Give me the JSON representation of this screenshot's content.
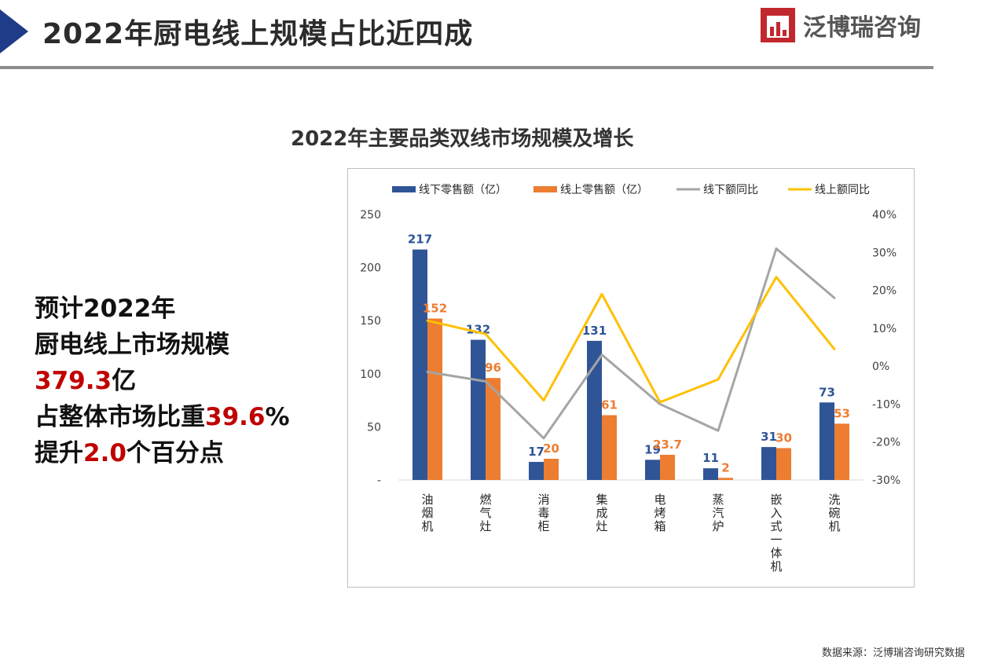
{
  "header": {
    "title": "2022年厨电线上规模占比近四成"
  },
  "logo": {
    "name": "泛博瑞咨询",
    "icon": "brand-logo-icon"
  },
  "summary": {
    "line1": "预计2022年",
    "line2": "厨电线上市场规模",
    "line3_value": "379.3",
    "line3_unit": "亿",
    "line4_prefix": "占整体市场比重",
    "line4_value": "39.6",
    "line4_suffix": "%",
    "line5_prefix": "提升",
    "line5_value": "2.0",
    "line5_suffix": "个百分点"
  },
  "chart_data": {
    "type": "bar",
    "title": "2022年主要品类双线市场规模及增长",
    "categories": [
      "油烟机",
      "燃气灶",
      "消毒柜",
      "集成灶",
      "电烤箱",
      "蒸汽炉",
      "嵌入式一体机",
      "洗碗机"
    ],
    "series": [
      {
        "name": "线下零售额（亿）",
        "kind": "bar",
        "axis": "left",
        "color": "#2f5597",
        "values": [
          217,
          132,
          17,
          131,
          19,
          11,
          31,
          73
        ],
        "labels": [
          "217",
          "132",
          "17",
          "131",
          "19",
          "11",
          "31",
          "73"
        ]
      },
      {
        "name": "线上零售额（亿）",
        "kind": "bar",
        "axis": "left",
        "color": "#ed7d31",
        "values": [
          152,
          96,
          20,
          61,
          23.7,
          2,
          30,
          53
        ],
        "labels": [
          "152",
          "96",
          "20",
          "61",
          "23.7",
          "2",
          "30",
          "53"
        ]
      },
      {
        "name": "线下额同比",
        "kind": "line",
        "axis": "right",
        "color": "#a5a5a5",
        "values": [
          -1.5,
          -4,
          -19,
          3,
          -10,
          -17,
          31,
          18
        ]
      },
      {
        "name": "线上额同比",
        "kind": "line",
        "axis": "right",
        "color": "#ffc000",
        "values": [
          12,
          8.5,
          -9,
          19,
          -9.5,
          -3.5,
          23.5,
          4.5
        ]
      }
    ],
    "y_left": {
      "ylim": [
        0,
        250
      ],
      "ticks": [
        "-",
        "50",
        "100",
        "150",
        "200",
        "250"
      ]
    },
    "y_right": {
      "ylim": [
        -30,
        40
      ],
      "unit": "%",
      "ticks": [
        "-30%",
        "-20%",
        "-10%",
        "0%",
        "10%",
        "20%",
        "30%",
        "40%"
      ]
    },
    "legend_position": "top",
    "grid": false
  },
  "footer": {
    "source": "数据来源：泛博瑞咨询研究数据"
  }
}
